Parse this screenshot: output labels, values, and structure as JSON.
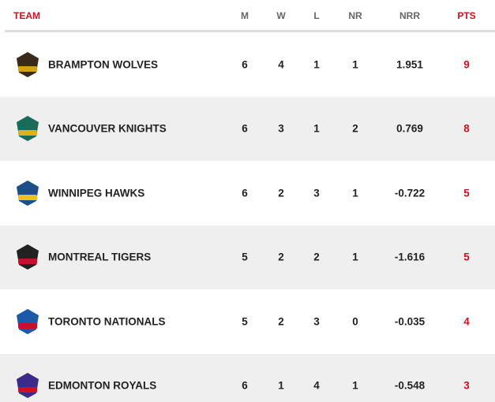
{
  "table": {
    "header": [
      "TEAM",
      "M",
      "W",
      "L",
      "NR",
      "NRR",
      "PTS"
    ],
    "rows": [
      [
        "BRAMPTON WOLVES",
        6,
        4,
        1,
        1,
        1.951,
        9
      ],
      [
        "VANCOUVER KNIGHTS",
        6,
        3,
        1,
        2,
        0.769,
        8
      ],
      [
        "WINNIPEG HAWKS",
        6,
        2,
        3,
        1,
        -0.722,
        5
      ],
      [
        "MONTREAL TIGERS",
        5,
        2,
        2,
        1,
        -1.616,
        5
      ],
      [
        "TORONTO NATIONALS",
        5,
        2,
        3,
        0,
        -0.035,
        4
      ],
      [
        "EDMONTON ROYALS",
        6,
        1,
        4,
        1,
        -0.548,
        3
      ]
    ]
  }
}
